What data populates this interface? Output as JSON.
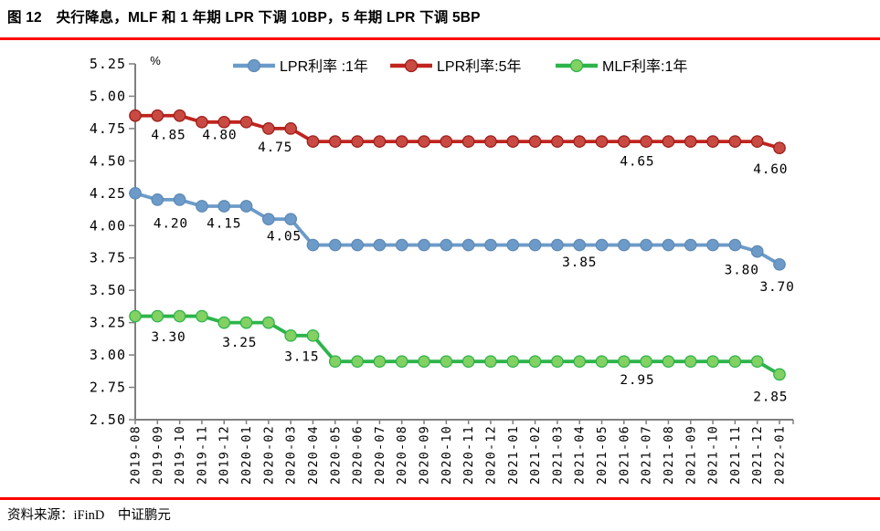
{
  "figure": {
    "title": "图 12　央行降息，MLF 和 1 年期 LPR 下调 10BP，5 年期 LPR 下调 5BP",
    "source": "资料来源：iFinD　中证鹏元",
    "accent_color": "#FE0000"
  },
  "chart_data": {
    "type": "line",
    "title": "",
    "xlabel": "",
    "ylabel": "%",
    "ylim": [
      2.5,
      5.25
    ],
    "ytick_step": 0.25,
    "yticks": [
      "5.25",
      "5.00",
      "4.75",
      "4.50",
      "4.25",
      "4.00",
      "3.75",
      "3.50",
      "3.25",
      "3.00",
      "2.75",
      "2.50"
    ],
    "grid": false,
    "legend_position": "top",
    "axis_color": "#7F7F7F",
    "categories": [
      "2019-08",
      "2019-09",
      "2019-10",
      "2019-11",
      "2019-12",
      "2020-01",
      "2020-02",
      "2020-03",
      "2020-04",
      "2020-05",
      "2020-06",
      "2020-07",
      "2020-08",
      "2020-09",
      "2020-10",
      "2020-11",
      "2020-12",
      "2021-01",
      "2021-02",
      "2021-03",
      "2021-04",
      "2021-05",
      "2021-06",
      "2021-07",
      "2021-08",
      "2021-09",
      "2021-10",
      "2021-11",
      "2021-12",
      "2022-01"
    ],
    "series": [
      {
        "name": "LPR利率 :1年",
        "color": "#6D9BC9",
        "marker_fill": "#6D9BC9",
        "marker_stroke": "#5E8AB4",
        "values": [
          4.25,
          4.2,
          4.2,
          4.15,
          4.15,
          4.15,
          4.05,
          4.05,
          3.85,
          3.85,
          3.85,
          3.85,
          3.85,
          3.85,
          3.85,
          3.85,
          3.85,
          3.85,
          3.85,
          3.85,
          3.85,
          3.85,
          3.85,
          3.85,
          3.85,
          3.85,
          3.85,
          3.85,
          3.8,
          3.7
        ]
      },
      {
        "name": "LPR利率:5年",
        "color": "#C0241F",
        "marker_fill": "#C84A43",
        "marker_stroke": "#9C1F1B",
        "values": [
          4.85,
          4.85,
          4.85,
          4.8,
          4.8,
          4.8,
          4.75,
          4.75,
          4.65,
          4.65,
          4.65,
          4.65,
          4.65,
          4.65,
          4.65,
          4.65,
          4.65,
          4.65,
          4.65,
          4.65,
          4.65,
          4.65,
          4.65,
          4.65,
          4.65,
          4.65,
          4.65,
          4.65,
          4.65,
          4.6
        ]
      },
      {
        "name": "MLF利率:1年",
        "color": "#2DB44B",
        "marker_fill": "#83D063",
        "marker_stroke": "#2DB44B",
        "values": [
          3.3,
          3.3,
          3.3,
          3.3,
          3.25,
          3.25,
          3.25,
          3.15,
          3.15,
          2.95,
          2.95,
          2.95,
          2.95,
          2.95,
          2.95,
          2.95,
          2.95,
          2.95,
          2.95,
          2.95,
          2.95,
          2.95,
          2.95,
          2.95,
          2.95,
          2.95,
          2.95,
          2.95,
          2.95,
          2.85
        ]
      }
    ],
    "annotations": [
      {
        "text": "4.85",
        "xi": 1.5,
        "yv": 4.705
      },
      {
        "text": "4.80",
        "xi": 3.8,
        "yv": 4.705
      },
      {
        "text": "4.75",
        "xi": 6.3,
        "yv": 4.61
      },
      {
        "text": "4.65",
        "xi": 22.6,
        "yv": 4.5
      },
      {
        "text": "4.60",
        "xi": 28.6,
        "yv": 4.44
      },
      {
        "text": "4.20",
        "xi": 1.6,
        "yv": 4.02
      },
      {
        "text": "4.15",
        "xi": 4.0,
        "yv": 4.02
      },
      {
        "text": "4.05",
        "xi": 6.7,
        "yv": 3.92
      },
      {
        "text": "3.85",
        "xi": 20.0,
        "yv": 3.72
      },
      {
        "text": "3.80",
        "xi": 27.3,
        "yv": 3.66
      },
      {
        "text": "3.70",
        "xi": 28.9,
        "yv": 3.53
      },
      {
        "text": "3.30",
        "xi": 1.5,
        "yv": 3.14
      },
      {
        "text": "3.25",
        "xi": 4.7,
        "yv": 3.1
      },
      {
        "text": "3.15",
        "xi": 7.5,
        "yv": 2.99
      },
      {
        "text": "2.95",
        "xi": 22.6,
        "yv": 2.81
      },
      {
        "text": "2.85",
        "xi": 28.6,
        "yv": 2.68
      }
    ]
  }
}
